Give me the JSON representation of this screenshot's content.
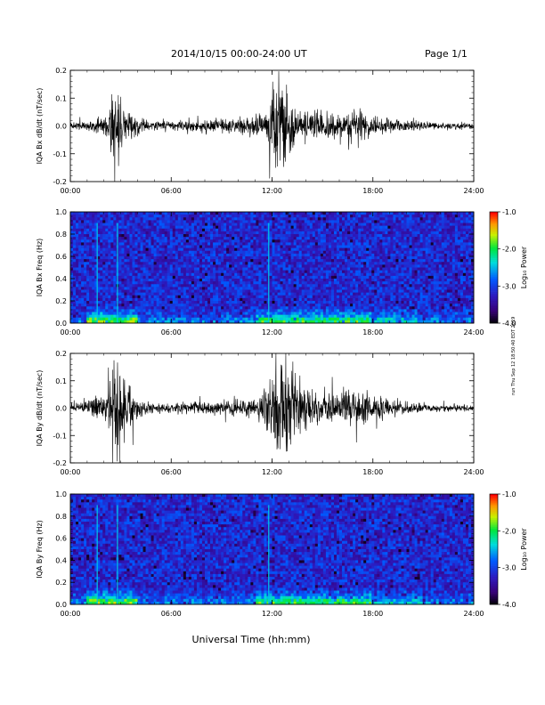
{
  "header": {
    "title": "2014/10/15   00:00-24:00 UT",
    "page": "Page 1/1"
  },
  "footer": {
    "xlabel": "Universal Time (hh:mm)"
  },
  "side_note": "run Thu Sep 12 18:50:40 EDT 2019",
  "colorbar": {
    "label": "Log₁₀ Power",
    "ticks": [
      "-1.0",
      "-2.0",
      "-3.0",
      "-4.0"
    ],
    "range": [
      -4.0,
      -1.0
    ]
  },
  "chart_data": [
    {
      "type": "line",
      "ylabel": "IQA Bx dB/dt (nT/sec)",
      "xlim": [
        "00:00",
        "24:00"
      ],
      "ylim": [
        -0.2,
        0.2
      ],
      "x_ticks": [
        "00:00",
        "06:00",
        "12:00",
        "18:00",
        "24:00"
      ],
      "y_ticks": [
        "0.2",
        "0.1",
        "0.0",
        "-0.1",
        "-0.2"
      ],
      "series": [
        {
          "activity_profile": {
            "hours": [
              0,
              1,
              2,
              2.6,
              3.2,
              4,
              5,
              6,
              8,
              10,
              11.5,
              12.2,
              12.9,
              13.5,
              15,
              16,
              17,
              18,
              19,
              20,
              22,
              24
            ],
            "amplitude": [
              0.02,
              0.03,
              0.05,
              0.25,
              0.12,
              0.05,
              0.03,
              0.03,
              0.04,
              0.05,
              0.07,
              0.3,
              0.25,
              0.09,
              0.08,
              0.07,
              0.09,
              0.06,
              0.05,
              0.03,
              0.02,
              0.02
            ]
          }
        }
      ]
    },
    {
      "type": "heatmap",
      "ylabel": "IQA Bx Freq (Hz)",
      "xlim": [
        "00:00",
        "24:00"
      ],
      "ylim": [
        0.0,
        1.0
      ],
      "x_ticks": [
        "00:00",
        "06:00",
        "12:00",
        "18:00",
        "24:00"
      ],
      "y_ticks": [
        "1.0",
        "0.8",
        "0.6",
        "0.4",
        "0.2",
        "0.0"
      ],
      "zlabel": "Log₁₀ Power",
      "zlim": [
        -4.0,
        -1.0
      ],
      "features": {
        "vertical_lines_hours": [
          1.6,
          2.8,
          11.8
        ],
        "low_freq_band_max_hz": 0.15
      }
    },
    {
      "type": "line",
      "ylabel": "IQA By dB/dt (nT/sec)",
      "xlim": [
        "00:00",
        "24:00"
      ],
      "ylim": [
        -0.2,
        0.2
      ],
      "x_ticks": [
        "00:00",
        "06:00",
        "12:00",
        "18:00",
        "24:00"
      ],
      "y_ticks": [
        "0.2",
        "0.1",
        "0.0",
        "-0.1",
        "-0.2"
      ],
      "series": [
        {
          "activity_profile": {
            "hours": [
              0,
              1,
              2,
              2.6,
              3.2,
              4,
              5,
              6,
              8,
              10,
              11.5,
              12.3,
              13.0,
              14,
              15,
              16,
              17,
              18,
              19,
              20,
              22,
              24
            ],
            "amplitude": [
              0.02,
              0.04,
              0.08,
              0.25,
              0.18,
              0.06,
              0.03,
              0.03,
              0.04,
              0.05,
              0.08,
              0.3,
              0.28,
              0.12,
              0.1,
              0.09,
              0.12,
              0.08,
              0.06,
              0.04,
              0.02,
              0.02
            ]
          }
        }
      ]
    },
    {
      "type": "heatmap",
      "ylabel": "IQA By Freq (Hz)",
      "xlim": [
        "00:00",
        "24:00"
      ],
      "ylim": [
        0.0,
        1.0
      ],
      "x_ticks": [
        "00:00",
        "06:00",
        "12:00",
        "18:00",
        "24:00"
      ],
      "y_ticks": [
        "1.0",
        "0.8",
        "0.6",
        "0.4",
        "0.2",
        "0.0"
      ],
      "zlabel": "Log₁₀ Power",
      "zlim": [
        -4.0,
        -1.0
      ],
      "features": {
        "vertical_lines_hours": [
          1.6,
          2.8,
          11.8
        ],
        "low_freq_band_max_hz": 0.15
      }
    }
  ]
}
